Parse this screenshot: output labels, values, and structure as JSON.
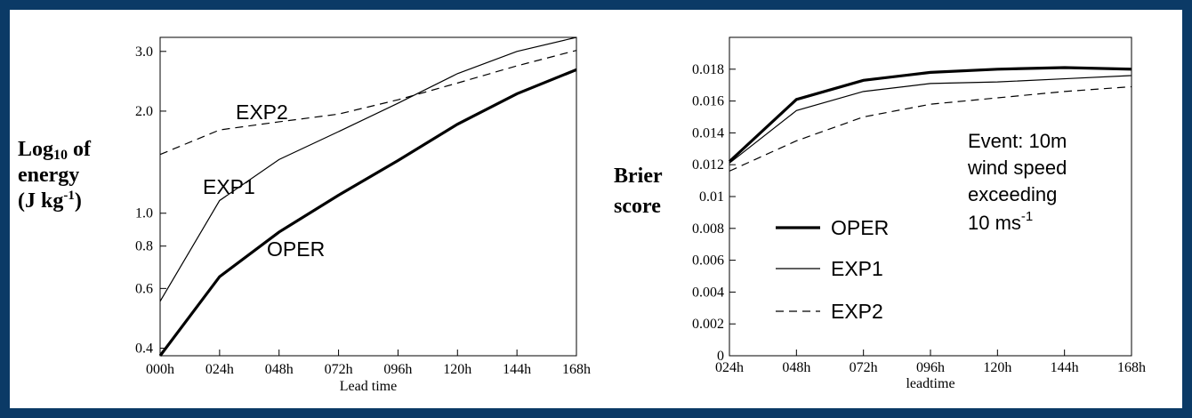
{
  "chart_data": [
    {
      "type": "line",
      "ylabel_parts": [
        "Log",
        "10",
        " of",
        "energy",
        "(J kg",
        "-1",
        ")"
      ],
      "xlabel": "Lead time",
      "categories": [
        "000h",
        "024h",
        "048h",
        "072h",
        "096h",
        "120h",
        "144h",
        "168h"
      ],
      "yscale": "log",
      "ylim": [
        0.38,
        3.3
      ],
      "yticks": [
        0.4,
        0.6,
        0.8,
        1.0,
        2.0,
        3.0
      ],
      "ytick_labels": [
        "0.4",
        "0.6",
        "0.8",
        "1.0",
        "2.0",
        "3.0"
      ],
      "grid": false,
      "series": [
        {
          "name": "OPER",
          "style": "thick",
          "values": [
            0.38,
            0.65,
            0.88,
            1.13,
            1.43,
            1.83,
            2.25,
            2.65
          ]
        },
        {
          "name": "EXP1",
          "style": "thin",
          "values": [
            0.55,
            1.09,
            1.44,
            1.74,
            2.11,
            2.58,
            3.0,
            3.3
          ]
        },
        {
          "name": "EXP2",
          "style": "dashed",
          "values": [
            1.49,
            1.76,
            1.86,
            1.96,
            2.16,
            2.42,
            2.72,
            3.02
          ]
        }
      ],
      "annotations": [
        "EXP2",
        "EXP1",
        "OPER"
      ]
    },
    {
      "type": "line",
      "ylabel_lines": [
        "Brier",
        "score"
      ],
      "xlabel": "leadtime",
      "categories": [
        "024h",
        "048h",
        "072h",
        "096h",
        "120h",
        "144h",
        "168h"
      ],
      "ylim": [
        0,
        0.02
      ],
      "yticks": [
        0,
        0.002,
        0.004,
        0.006,
        0.008,
        0.01,
        0.012,
        0.014,
        0.016,
        0.018
      ],
      "ytick_labels": [
        "0",
        "0.002",
        "0.004",
        "0.006",
        "0.008",
        "0.01",
        "0.012",
        "0.014",
        "0.016",
        "0.018"
      ],
      "grid": false,
      "legend_position": "lower-left",
      "series": [
        {
          "name": "OPER",
          "style": "thick",
          "values": [
            0.0122,
            0.0161,
            0.0173,
            0.0178,
            0.018,
            0.0181,
            0.018
          ]
        },
        {
          "name": "EXP1",
          "style": "thin",
          "values": [
            0.0121,
            0.0154,
            0.0166,
            0.0171,
            0.0172,
            0.0174,
            0.0176
          ]
        },
        {
          "name": "EXP2",
          "style": "dashed",
          "values": [
            0.0116,
            0.0135,
            0.015,
            0.0158,
            0.0162,
            0.0166,
            0.0169
          ]
        }
      ],
      "event_text": [
        "Event:  10m",
        "wind speed",
        "exceeding",
        "10 ms",
        "-1"
      ]
    }
  ]
}
